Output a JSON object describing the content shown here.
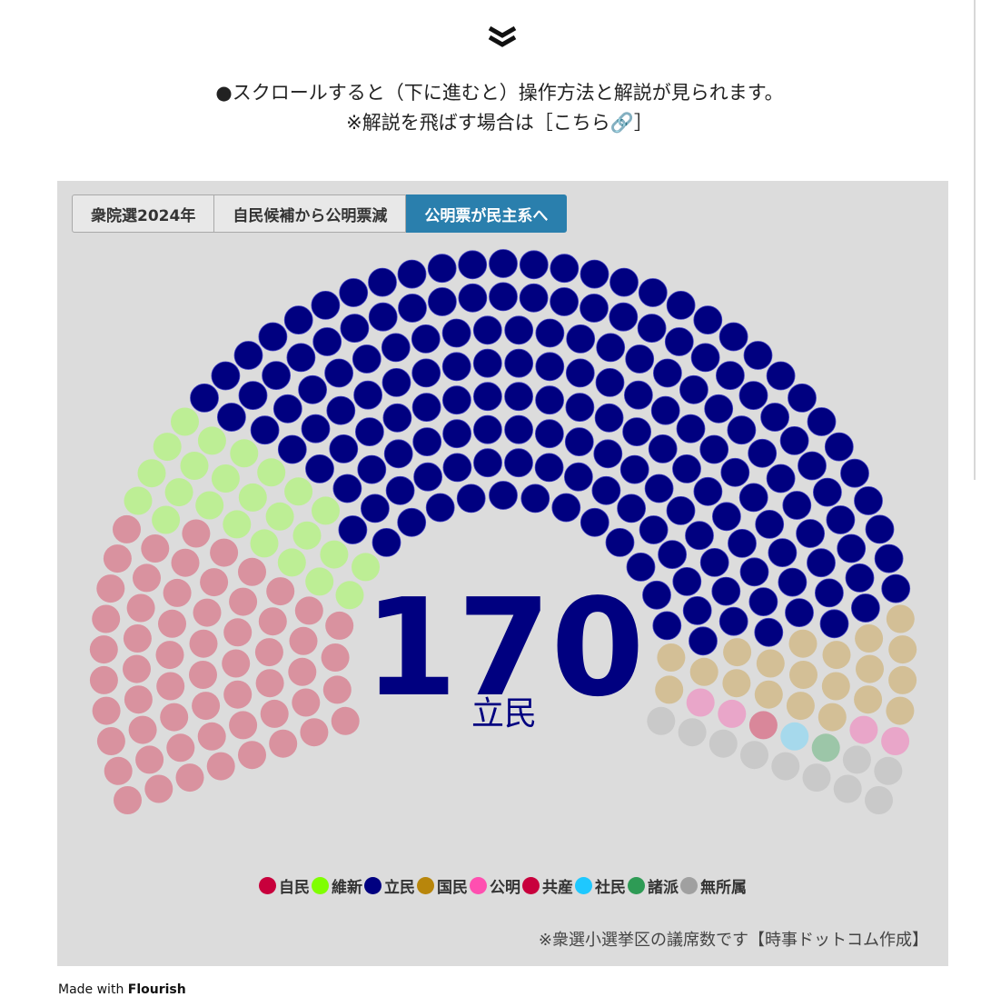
{
  "intro": {
    "scroll_icon": "double-chevron-down-icon",
    "line1": "●スクロールすると（下に進むと）操作方法と解説が見られます。",
    "line2_prefix": "※解説を飛ばす場合は［",
    "line2_link": "こちら🔗",
    "line2_suffix": "］"
  },
  "tabs": [
    {
      "label": "衆院選2024年",
      "active": false
    },
    {
      "label": "自民候補から公明票減",
      "active": false
    },
    {
      "label": "公明票が民主系へ",
      "active": true
    }
  ],
  "colors": {
    "accent": "#2a7fad",
    "panel_bg": "#dcdcdc"
  },
  "chart_data": {
    "type": "parliament",
    "total_seats": 289,
    "highlighted": "立民",
    "center_value": "170",
    "center_label": "立民",
    "series": [
      {
        "name": "自民",
        "value": 58,
        "color": "#c8003c",
        "faded_color": "#d9929f"
      },
      {
        "name": "維新",
        "value": 24,
        "color": "#7fff00",
        "faded_color": "#bdee95"
      },
      {
        "name": "立民",
        "value": 170,
        "color": "#000080",
        "faded_color": "#000080"
      },
      {
        "name": "国民",
        "value": 20,
        "color": "#b8860b",
        "faded_color": "#d3bf96"
      },
      {
        "name": "公明",
        "value": 4,
        "color": "#ff4fb0",
        "faded_color": "#e9a6c9"
      },
      {
        "name": "共産",
        "value": 1,
        "color": "#c8003c",
        "faded_color": "#d9879a"
      },
      {
        "name": "社民",
        "value": 1,
        "color": "#1ec8ff",
        "faded_color": "#a6d9ec"
      },
      {
        "name": "諸派",
        "value": 1,
        "color": "#2e9b55",
        "faded_color": "#9cc6a8"
      },
      {
        "name": "無所属",
        "value": 10,
        "color": "#a0a0a0",
        "faded_color": "#c9c9c9"
      }
    ],
    "footnote": "※衆選小選挙区の議席数です【時事ドットコム作成】"
  },
  "footer": {
    "made_with": "Made with",
    "brand": "Flourish"
  }
}
